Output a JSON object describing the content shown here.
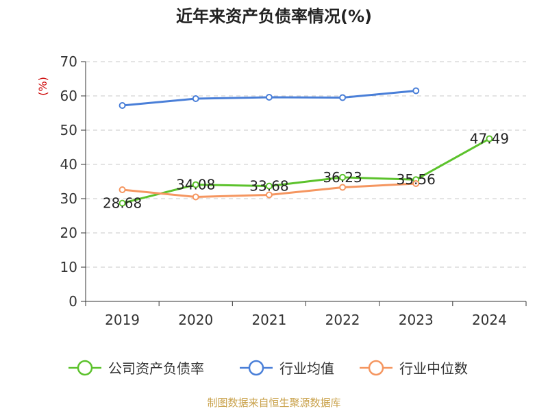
{
  "chart_data": {
    "type": "line",
    "title": "近年来资产负债率情况(%)",
    "ylabel": "(%)",
    "xlabel": "",
    "categories": [
      "2019",
      "2020",
      "2021",
      "2022",
      "2023",
      "2024"
    ],
    "ylim": [
      0,
      70
    ],
    "yticks": [
      "0",
      "10",
      "20",
      "30",
      "40",
      "50",
      "60",
      "70"
    ],
    "grid": true,
    "legend_position": "bottom",
    "series": [
      {
        "name": "公司资产负债率",
        "color": "#5cc22c",
        "values": [
          28.68,
          34.08,
          33.68,
          36.23,
          35.56,
          47.49
        ],
        "labels": [
          "28.68",
          "34.08",
          "33.68",
          "36.23",
          "35.56",
          "47.49"
        ]
      },
      {
        "name": "行业均值",
        "color": "#4a7fd8",
        "values": [
          57.2,
          59.2,
          59.6,
          59.5,
          61.5,
          null
        ]
      },
      {
        "name": "行业中位数",
        "color": "#f59660",
        "values": [
          32.6,
          30.5,
          31.1,
          33.3,
          34.4,
          null
        ]
      }
    ]
  },
  "source": "制图数据来自恒生聚源数据库"
}
